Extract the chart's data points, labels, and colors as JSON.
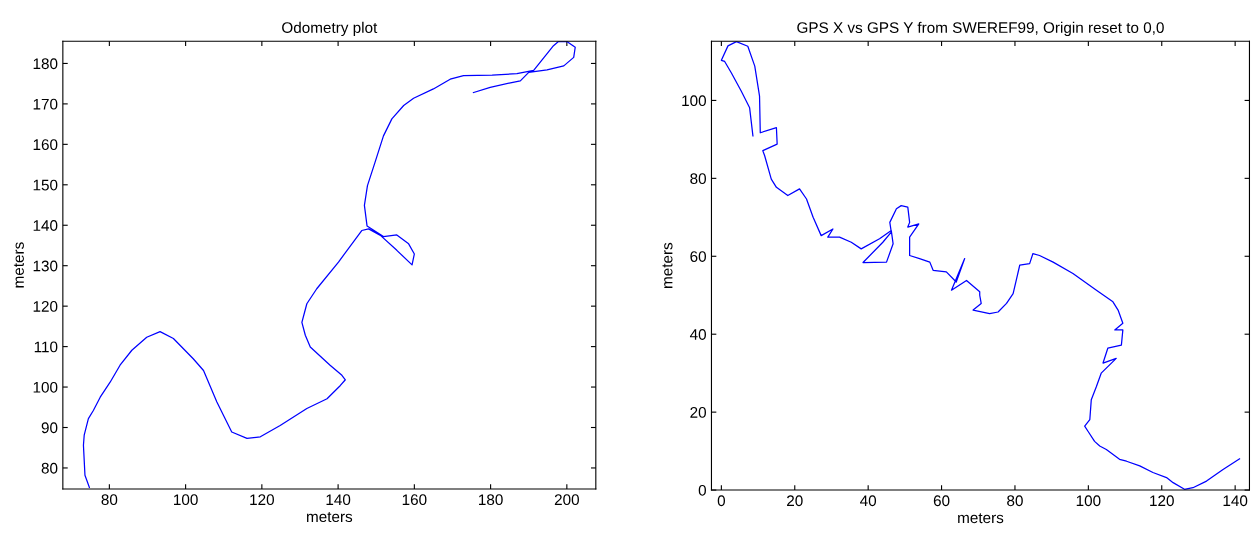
{
  "chart_data": [
    {
      "type": "line",
      "title": "Odometry plot",
      "xlabel": "meters",
      "ylabel": "meters",
      "xlim": [
        67.8,
        207.6
      ],
      "ylim": [
        74.8,
        185.5
      ],
      "xticks": [
        80,
        100,
        120,
        140,
        160,
        180,
        200
      ],
      "yticks": [
        80,
        90,
        100,
        110,
        120,
        130,
        140,
        150,
        160,
        170,
        180
      ],
      "grid": false,
      "series": [
        {
          "color": "#0000ff",
          "x": [
            74.75,
            73.6,
            73.2,
            73.4,
            74.5,
            75.8,
            77.6,
            80.2,
            82.8,
            85.9,
            89.8,
            93.3,
            96.8,
            102.0,
            104.7,
            108.2,
            112.1,
            116.1,
            119.6,
            124.8,
            131.8,
            137.1,
            140.6,
            141.9,
            141.0,
            137.9,
            132.7,
            131.4,
            130.5,
            131.8,
            134.4,
            140.1,
            146.2,
            148.0,
            151.1,
            155.4,
            159.4,
            160.0,
            158.5,
            155.4,
            151.9,
            147.6,
            146.9,
            147.7,
            149.7,
            151.9,
            154.1,
            157.2,
            159.8,
            165.0,
            169.4,
            172.9,
            180.4,
            186.9,
            191.3,
            196.5,
            197.8,
            200.0,
            202.2,
            201.8,
            199.2,
            194.8,
            190.0,
            187.8,
            185.2,
            179.9,
            175.5
          ],
          "values": [
            75.2,
            78.2,
            85.6,
            88.1,
            92.2,
            94.2,
            97.5,
            101.2,
            105.4,
            109.1,
            112.3,
            113.7,
            112.0,
            107.0,
            104.1,
            96.3,
            88.9,
            87.3,
            87.7,
            90.5,
            94.7,
            97.1,
            100.4,
            101.8,
            102.9,
            105.4,
            109.9,
            112.8,
            116.0,
            120.6,
            124.3,
            130.9,
            138.7,
            139.1,
            137.5,
            133.8,
            130.2,
            132.9,
            135.4,
            137.6,
            137.2,
            139.8,
            144.9,
            149.8,
            155.6,
            162.1,
            166.3,
            169.6,
            171.4,
            173.7,
            176.1,
            177.0,
            177.1,
            177.5,
            178.3,
            184.4,
            185.4,
            185.4,
            184.0,
            181.5,
            179.4,
            178.4,
            177.8,
            175.7,
            175.2,
            174.1,
            172.8
          ]
        }
      ]
    },
    {
      "type": "line",
      "title": "GPS X vs GPS Y from SWEREF99, Origin reset to 0,0",
      "xlabel": "meters",
      "ylabel": "meters",
      "xlim": [
        -2.7,
        143.9
      ],
      "ylim": [
        0,
        115.2
      ],
      "xticks": [
        0,
        20,
        40,
        60,
        80,
        100,
        120,
        140
      ],
      "yticks": [
        0,
        20,
        40,
        60,
        80,
        100
      ],
      "grid": false,
      "series": [
        {
          "color": "#0000ff",
          "x": [
            8.6,
            7.7,
            5.4,
            2.7,
            0.9,
            0.0,
            1.8,
            4.1,
            7.2,
            9.1,
            10.4,
            10.6,
            15.0,
            15.2,
            11.3,
            11.8,
            13.6,
            15.0,
            18.1,
            21.3,
            23.2,
            25.0,
            27.2,
            30.4,
            29.0,
            32.2,
            35.4,
            38.1,
            43.1,
            46.3,
            46.8,
            45.0,
            38.6,
            44.0,
            46.3,
            45.9,
            47.7,
            49.0,
            50.8,
            51.3,
            50.8,
            53.8,
            51.3,
            51.3,
            54.0,
            56.8,
            57.7,
            61.3,
            64.0,
            66.3,
            62.7,
            66.8,
            70.4,
            70.4,
            70.8,
            68.6,
            73.1,
            75.4,
            77.7,
            79.5,
            81.3,
            84.0,
            84.9,
            86.7,
            90.4,
            95.8,
            102.2,
            106.7,
            108.1,
            109.4,
            107.2,
            109.4,
            109.0,
            105.3,
            104.0,
            107.6,
            103.5,
            102.2,
            100.8,
            100.4,
            99.0,
            99.9,
            101.7,
            103.1,
            104.9,
            108.5,
            110.4,
            114.0,
            117.6,
            121.3,
            123.1,
            126.2,
            128.5,
            132.2,
            136.7,
            141.2
          ],
          "values": [
            90.9,
            98.1,
            102.4,
            107.1,
            110.0,
            110.3,
            114.0,
            115.1,
            113.9,
            108.8,
            101.1,
            91.7,
            93.0,
            88.8,
            87.1,
            85.8,
            79.8,
            77.7,
            75.6,
            77.3,
            74.7,
            70.0,
            65.3,
            67.0,
            64.9,
            64.9,
            63.6,
            61.9,
            64.5,
            66.6,
            63.2,
            58.5,
            58.4,
            63.6,
            66.2,
            68.7,
            72.2,
            73.0,
            72.6,
            68.7,
            67.5,
            68.3,
            64.9,
            60.2,
            59.4,
            58.5,
            56.4,
            56.0,
            53.4,
            59.4,
            51.3,
            53.8,
            50.9,
            50.0,
            47.9,
            46.2,
            45.3,
            45.7,
            47.9,
            50.4,
            57.7,
            58.1,
            60.7,
            60.2,
            58.5,
            55.6,
            51.3,
            48.3,
            46.2,
            42.8,
            41.1,
            41.1,
            37.2,
            36.4,
            32.6,
            33.8,
            30.0,
            26.6,
            23.2,
            18.1,
            16.4,
            15.1,
            12.5,
            11.3,
            10.4,
            7.9,
            7.4,
            6.2,
            4.5,
            3.2,
            1.9,
            0.2,
            0.6,
            2.3,
            5.3,
            8.0
          ]
        }
      ]
    }
  ]
}
